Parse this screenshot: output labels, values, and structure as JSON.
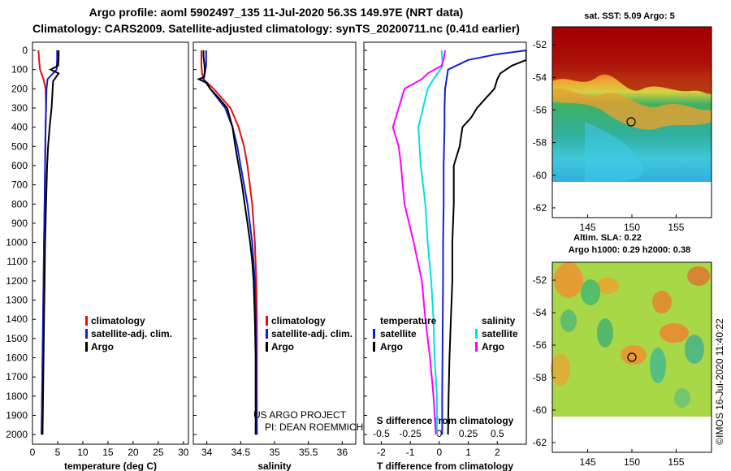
{
  "chart_data": {
    "type": "line",
    "title_line1": "Argo profile: aoml 5902497_135 11-Jul-2020 56.3S 149.97E (NRT data)",
    "title_line2": "Climatology: CARS2009. Satellite-adjusted climatology: synTS_20200711.nc (0.41d earlier)",
    "depth_axis": {
      "ylim": [
        2050,
        0
      ],
      "ticks": [
        "0",
        "100",
        "200",
        "300",
        "400",
        "500",
        "600",
        "700",
        "800",
        "900",
        "1000",
        "1100",
        "1200",
        "1300",
        "1400",
        "1500",
        "1600",
        "1700",
        "1800",
        "1900",
        "2000"
      ]
    },
    "panels": [
      {
        "xlabel": "temperature (deg C)",
        "xlim": [
          0,
          31
        ],
        "xticks": [
          "0",
          "5",
          "10",
          "15",
          "20",
          "25",
          "30"
        ],
        "legend": [
          "climatology",
          "satellite-adj. clim.",
          "Argo"
        ],
        "series": [
          {
            "name": "climatology",
            "color": "#e01010",
            "depth": [
              0,
              50,
              100,
              150,
              200,
              300,
              400,
              600,
              800,
              1000,
              1200,
              1400,
              1600,
              1800,
              2000
            ],
            "values": [
              1.2,
              1.3,
              1.5,
              2.2,
              2.6,
              2.7,
              2.6,
              2.5,
              2.4,
              2.3,
              2.2,
              2.1,
              2.0,
              1.9,
              1.8
            ]
          },
          {
            "name": "satellite-adj. clim.",
            "color": "#1020d0",
            "depth": [
              0,
              50,
              100,
              150,
              200,
              300,
              400,
              600,
              800,
              1000,
              1200,
              1400,
              1600,
              1800,
              2000
            ],
            "values": [
              4.9,
              4.9,
              4.8,
              3.0,
              2.8,
              2.7,
              2.6,
              2.5,
              2.4,
              2.3,
              2.2,
              2.1,
              2.0,
              1.9,
              1.8
            ]
          },
          {
            "name": "Argo",
            "color": "#000000",
            "depth": [
              0,
              40,
              80,
              100,
              120,
              160,
              200,
              250,
              300,
              400,
              500,
              600,
              800,
              1000,
              1200,
              1400,
              1600,
              1800,
              2000
            ],
            "values": [
              5.2,
              5.2,
              5.1,
              3.6,
              5.2,
              4.1,
              4.0,
              3.9,
              3.8,
              3.4,
              3.1,
              2.9,
              2.7,
              2.5,
              2.4,
              2.3,
              2.2,
              2.1,
              2.0
            ]
          }
        ]
      },
      {
        "xlabel": "salinity",
        "xlim": [
          33.8,
          36.2
        ],
        "xticks": [
          "34",
          "34.5",
          "35",
          "35.5",
          "36"
        ],
        "legend": [
          "climatology",
          "satellite-adj. clim.",
          "Argo"
        ],
        "series": [
          {
            "name": "climatology",
            "color": "#e01010",
            "depth": [
              0,
              80,
              120,
              150,
              200,
              300,
              400,
              500,
              600,
              800,
              1000,
              1200,
              1400,
              1600,
              1800,
              2000
            ],
            "values": [
              33.92,
              33.92,
              33.93,
              33.95,
              34.1,
              34.35,
              34.47,
              34.55,
              34.6,
              34.67,
              34.71,
              34.73,
              34.74,
              34.74,
              34.74,
              34.74
            ]
          },
          {
            "name": "satellite-adj. clim.",
            "color": "#1020d0",
            "depth": [
              0,
              80,
              120,
              150,
              200,
              300,
              400,
              500,
              600,
              800,
              1000,
              1200,
              1400,
              1600,
              1800,
              2000
            ],
            "values": [
              33.99,
              33.99,
              33.97,
              33.95,
              34.05,
              34.27,
              34.38,
              34.45,
              34.5,
              34.6,
              34.67,
              34.71,
              34.72,
              34.73,
              34.73,
              34.74
            ]
          },
          {
            "name": "Argo",
            "color": "#000000",
            "depth": [
              0,
              30,
              60,
              100,
              140,
              150,
              170,
              200,
              250,
              300,
              400,
              500,
              600,
              700,
              800,
              900,
              1000,
              1100,
              1200,
              1400,
              1600,
              1800,
              2000
            ],
            "values": [
              33.95,
              33.95,
              33.96,
              33.97,
              33.96,
              33.88,
              34.0,
              34.05,
              34.18,
              34.3,
              34.38,
              34.42,
              34.47,
              34.52,
              34.56,
              34.6,
              34.64,
              34.67,
              34.69,
              34.71,
              34.72,
              34.72,
              34.72
            ]
          }
        ]
      },
      {
        "xlabel": "T difference from climatology",
        "xlim": [
          -2.6,
          3.0
        ],
        "xticks": [
          "-2",
          "-1",
          "0",
          "1",
          "2"
        ],
        "top_xlabel": "S difference from climatology",
        "top_xticks": [
          "-0.5",
          "-0.25",
          "0",
          "0.25",
          "0.5"
        ],
        "legend_left_title": "temperature",
        "legend_right_title": "salinity",
        "legend": [
          "satellite",
          "Argo",
          "satellite",
          "Argo"
        ],
        "series": [
          {
            "name": "T satellite",
            "color": "#1020d0",
            "depth": [
              0,
              20,
              50,
              100,
              150,
              200,
              300,
              400,
              600,
              800,
              1000,
              1200,
              1400,
              1600,
              1800,
              2000
            ],
            "values": [
              3.0,
              2.0,
              1.0,
              0.3,
              0.25,
              0.2,
              0.18,
              0.18,
              0.15,
              0.15,
              0.13,
              0.13,
              0.12,
              0.11,
              0.1,
              0.1
            ]
          },
          {
            "name": "T Argo",
            "color": "#000000",
            "depth": [
              0,
              50,
              80,
              100,
              120,
              150,
              200,
              250,
              300,
              350,
              400,
              500,
              600,
              800,
              1000,
              1200,
              1400,
              1600,
              1800,
              2000
            ],
            "values": [
              3.0,
              3.0,
              2.5,
              2.3,
              2.1,
              2.0,
              1.9,
              1.6,
              1.3,
              1.1,
              0.8,
              0.7,
              0.5,
              0.5,
              0.45,
              0.45,
              0.4,
              0.35,
              0.32,
              0.3
            ]
          },
          {
            "name": "S satellite",
            "color": "#00e0e0",
            "depth": [
              0,
              80,
              150,
              200,
              400,
              600,
              800,
              1000,
              1200,
              1400,
              1600,
              1800,
              2000
            ],
            "values": [
              0.02,
              0.03,
              -0.05,
              -0.1,
              -0.18,
              -0.16,
              -0.12,
              -0.1,
              -0.07,
              -0.05,
              -0.04,
              -0.02,
              -0.02
            ]
          },
          {
            "name": "S Argo",
            "color": "#ff00ff",
            "depth": [
              0,
              40,
              80,
              120,
              150,
              200,
              300,
              400,
              500,
              600,
              800,
              1000,
              1200,
              1400,
              1600,
              1800,
              2000
            ],
            "values": [
              0.05,
              0.04,
              0.02,
              -0.1,
              -0.15,
              -0.3,
              -0.35,
              -0.4,
              -0.35,
              -0.33,
              -0.3,
              -0.22,
              -0.15,
              -0.12,
              -0.08,
              -0.05,
              -0.03
            ]
          }
        ]
      }
    ],
    "maps": [
      {
        "title": "sat. SST: 5.09 Argo: 5",
        "lon_ticks": [
          "145",
          "150",
          "155"
        ],
        "lat_ticks": [
          "-52",
          "-54",
          "-56",
          "-58",
          "-60",
          "-62"
        ],
        "marker": {
          "lon": 149.97,
          "lat": -56.3
        }
      },
      {
        "title_line1": "Altim. SLA: 0.22",
        "title_line2": "Argo h1000: 0.29 h2000: 0.38",
        "lon_ticks": [
          "145",
          "150",
          "155"
        ],
        "lat_ticks": [
          "-52",
          "-54",
          "-56",
          "-58",
          "-60",
          "-62"
        ],
        "marker": {
          "lon": 149.97,
          "lat": -56.3
        }
      }
    ],
    "annotations": {
      "project": "US ARGO PROJECT",
      "pi": "PI: DEAN ROEMMICH",
      "credit": "©IMOS 16-Jul-2020 11:40:22"
    }
  }
}
